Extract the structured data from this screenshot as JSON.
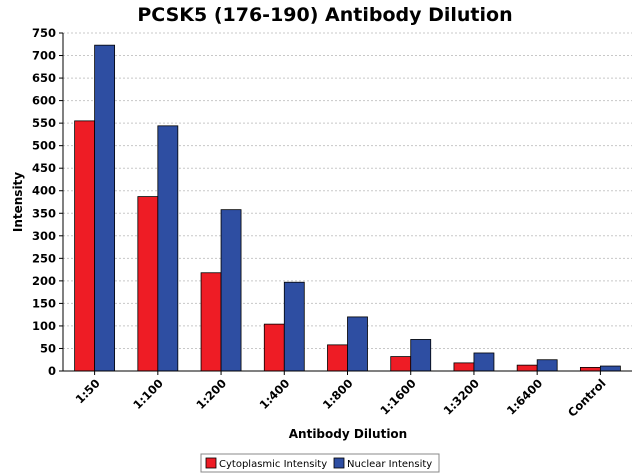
{
  "chart_data": {
    "type": "bar",
    "title": "PCSK5 (176-190) Antibody Dilution",
    "xlabel": "Antibody Dilution",
    "ylabel": "Intensity",
    "categories": [
      "1:50",
      "1:100",
      "1:200",
      "1:400",
      "1:800",
      "1:1600",
      "1:3200",
      "1:6400",
      "Control"
    ],
    "series": [
      {
        "name": "Cytoplasmic Intensity",
        "color": "#ee1c25",
        "values": [
          555,
          387,
          218,
          104,
          58,
          32,
          18,
          13,
          8
        ]
      },
      {
        "name": "Nuclear Intensity",
        "color": "#2e4ea2",
        "values": [
          723,
          544,
          358,
          197,
          120,
          70,
          40,
          25,
          11
        ]
      }
    ],
    "ylim": [
      0,
      750
    ],
    "yticks": [
      0,
      50,
      100,
      150,
      200,
      250,
      300,
      350,
      400,
      450,
      500,
      550,
      600,
      650,
      700,
      750
    ],
    "grid": true,
    "legend_position": "bottom"
  }
}
